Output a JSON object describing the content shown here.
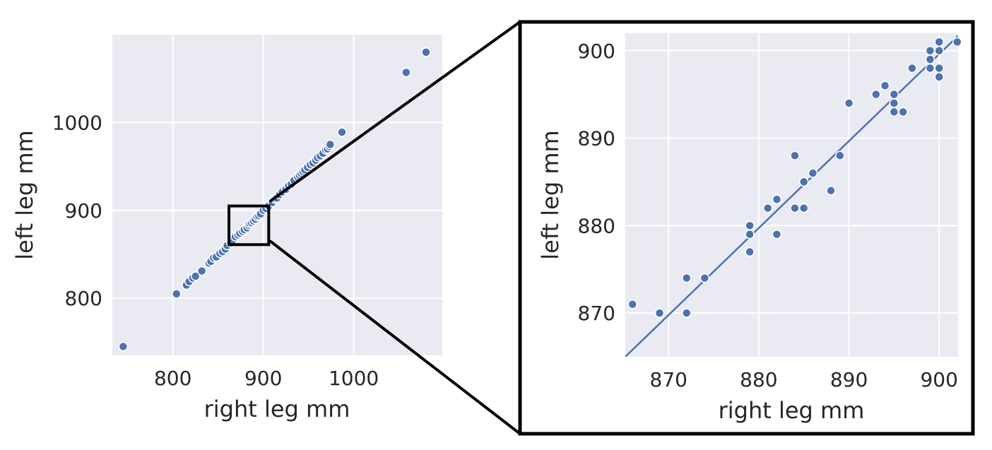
{
  "chart_data": [
    {
      "type": "scatter",
      "title": "",
      "xlabel": "right leg mm",
      "ylabel": "left leg mm",
      "xlim": [
        733,
        1098
      ],
      "ylim": [
        735,
        1100
      ],
      "xticks": [
        800,
        900,
        1000
      ],
      "yticks": [
        800,
        900,
        1000
      ],
      "grid": true,
      "zoom_region": {
        "x": [
          862,
          906
        ],
        "y": [
          861,
          905
        ]
      },
      "points": [
        [
          745,
          745
        ],
        [
          804,
          805
        ],
        [
          815,
          815
        ],
        [
          818,
          819
        ],
        [
          822,
          823
        ],
        [
          825,
          825
        ],
        [
          832,
          831
        ],
        [
          840,
          840
        ],
        [
          842,
          842
        ],
        [
          845,
          846
        ],
        [
          848,
          847
        ],
        [
          852,
          851
        ],
        [
          855,
          853
        ],
        [
          858,
          856
        ],
        [
          860,
          860
        ],
        [
          864,
          863
        ],
        [
          866,
          866
        ],
        [
          869,
          870
        ],
        [
          872,
          872
        ],
        [
          874,
          874
        ],
        [
          877,
          876
        ],
        [
          879,
          878
        ],
        [
          882,
          880
        ],
        [
          884,
          883
        ],
        [
          885,
          885
        ],
        [
          887,
          886
        ],
        [
          889,
          888
        ],
        [
          891,
          890
        ],
        [
          893,
          893
        ],
        [
          895,
          894
        ],
        [
          897,
          896
        ],
        [
          900,
          900
        ],
        [
          903,
          902
        ],
        [
          906,
          905
        ],
        [
          910,
          909
        ],
        [
          913,
          913
        ],
        [
          915,
          914
        ],
        [
          918,
          918
        ],
        [
          921,
          921
        ],
        [
          925,
          924
        ],
        [
          928,
          928
        ],
        [
          931,
          930
        ],
        [
          934,
          934
        ],
        [
          938,
          938
        ],
        [
          940,
          940
        ],
        [
          942,
          942
        ],
        [
          944,
          944
        ],
        [
          946,
          946
        ],
        [
          949,
          949
        ],
        [
          952,
          952
        ],
        [
          955,
          954
        ],
        [
          958,
          957
        ],
        [
          960,
          960
        ],
        [
          963,
          962
        ],
        [
          966,
          965
        ],
        [
          969,
          969
        ],
        [
          971,
          970
        ],
        [
          973,
          973
        ],
        [
          974,
          975
        ],
        [
          987,
          989
        ],
        [
          1058,
          1057
        ],
        [
          1080,
          1080
        ]
      ]
    },
    {
      "type": "scatter",
      "title": "",
      "xlabel": "right leg mm",
      "ylabel": "left leg mm",
      "xlim": [
        865.2,
        902.1
      ],
      "ylim": [
        865,
        902
      ],
      "xticks": [
        870,
        880,
        890,
        900
      ],
      "yticks": [
        870,
        880,
        890,
        900
      ],
      "grid": true,
      "fit_line": {
        "x": [
          865.2,
          902.1
        ],
        "y": [
          865,
          901.7
        ]
      },
      "points": [
        [
          866,
          871
        ],
        [
          869,
          870
        ],
        [
          872,
          874
        ],
        [
          872,
          870
        ],
        [
          874,
          874
        ],
        [
          879,
          880
        ],
        [
          879,
          879
        ],
        [
          879,
          877
        ],
        [
          881,
          882
        ],
        [
          882,
          883
        ],
        [
          882,
          879
        ],
        [
          884,
          888
        ],
        [
          884,
          882
        ],
        [
          885,
          885
        ],
        [
          885,
          882
        ],
        [
          886,
          886
        ],
        [
          888,
          884
        ],
        [
          889,
          888
        ],
        [
          890,
          894
        ],
        [
          893,
          895
        ],
        [
          894,
          896
        ],
        [
          895,
          895
        ],
        [
          895,
          894
        ],
        [
          895,
          893
        ],
        [
          896,
          893
        ],
        [
          897,
          898
        ],
        [
          899,
          900
        ],
        [
          899,
          899
        ],
        [
          899,
          898
        ],
        [
          900,
          901
        ],
        [
          900,
          900
        ],
        [
          900,
          898
        ],
        [
          900,
          897
        ],
        [
          902,
          901
        ]
      ]
    }
  ]
}
